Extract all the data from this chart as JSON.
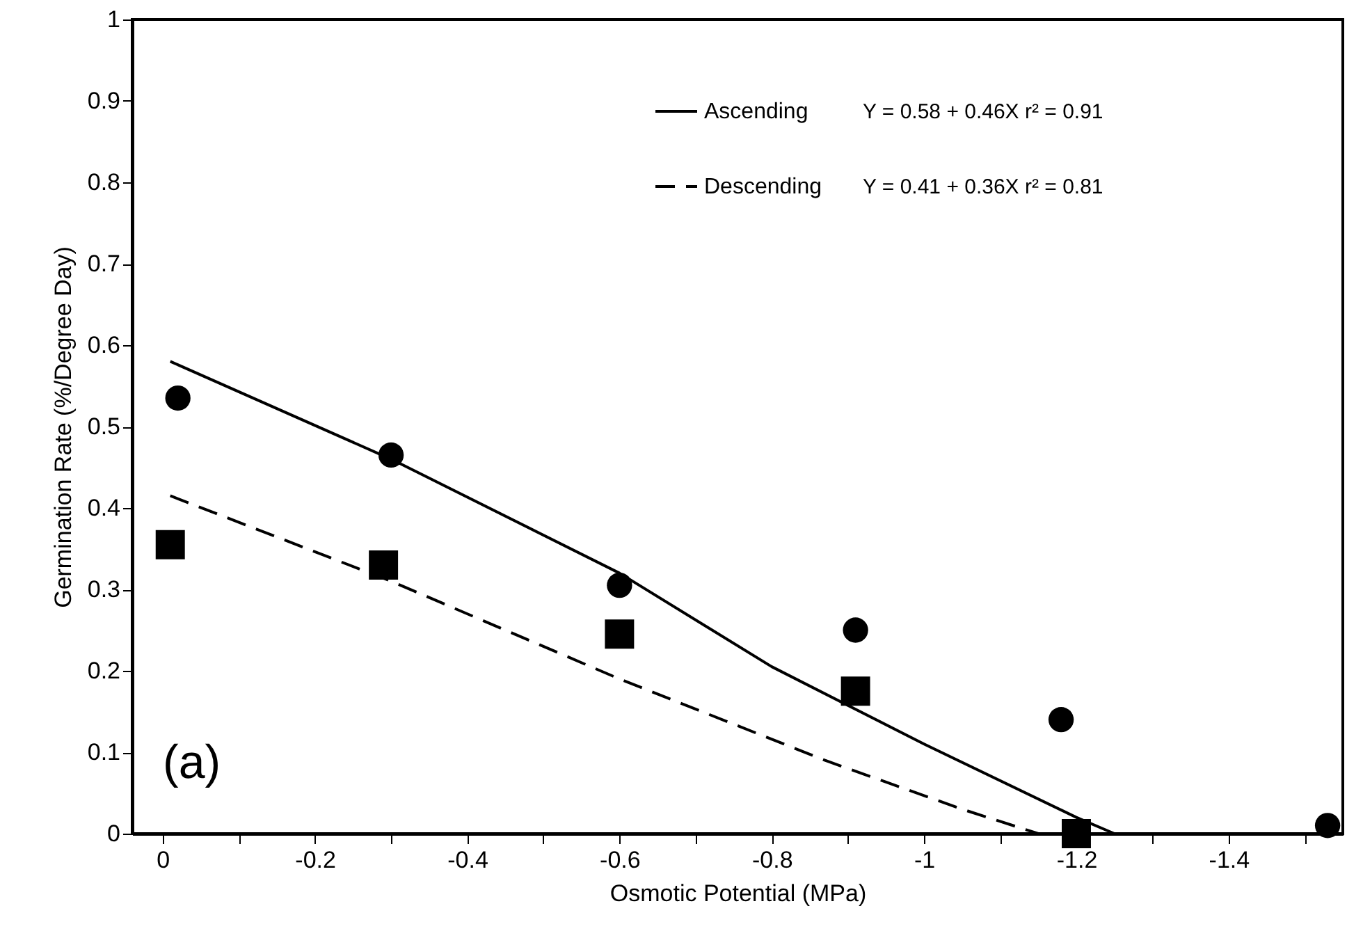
{
  "chart_data": {
    "type": "scatter",
    "xlabel": "Osmotic Potential (MPa)",
    "ylabel": "Germination Rate (%/Degree Day)",
    "xlim": [
      0.04,
      -1.55
    ],
    "ylim": [
      0,
      1
    ],
    "xticks": [
      0,
      {
        "value": -0.1,
        "label": null
      },
      -0.2,
      {
        "value": -0.3,
        "label": null
      },
      -0.4,
      {
        "value": -0.5,
        "label": null
      },
      -0.6,
      {
        "value": -0.7,
        "label": null
      },
      -0.8,
      {
        "value": -0.9,
        "label": null
      },
      -1,
      {
        "value": -1.1,
        "label": null
      },
      -1.2,
      {
        "value": -1.3,
        "label": null
      },
      -1.4,
      {
        "value": -1.5,
        "label": null
      }
    ],
    "yticks": [
      0,
      0.1,
      0.2,
      0.3,
      0.4,
      0.5,
      0.6,
      0.7,
      0.8,
      0.9,
      1
    ],
    "grid": false,
    "legend": "top right",
    "series": [
      {
        "type": "scatter",
        "marker": "circle",
        "color": "#000000",
        "x": [
          -0.02,
          -0.3,
          -0.6,
          -0.91,
          -1.18,
          -1.53
        ],
        "values": [
          0.535,
          0.465,
          0.305,
          0.25,
          0.14,
          0.01
        ]
      },
      {
        "type": "scatter",
        "marker": "square",
        "color": "#000000",
        "x": [
          -0.01,
          -0.29,
          -0.6,
          -0.91,
          -1.2
        ],
        "values": [
          0.355,
          0.33,
          0.245,
          0.175,
          0.0
        ]
      },
      {
        "type": "line",
        "name": "Ascending",
        "line_style": "solid",
        "marker": "none",
        "color": "#000000",
        "x": [
          -0.01,
          -0.3,
          -0.6,
          -0.8,
          -1.0,
          -1.2,
          -1.25
        ],
        "values": [
          0.58,
          0.46,
          0.32,
          0.205,
          0.11,
          0.02,
          0
        ]
      },
      {
        "type": "line",
        "name": "Descending",
        "line_style": "dashed",
        "marker": "none",
        "color": "#000000",
        "x": [
          -0.01,
          -0.3,
          -0.6,
          -0.87,
          -1.05,
          -1.15
        ],
        "values": [
          0.415,
          0.31,
          0.19,
          0.09,
          0.03,
          0
        ]
      }
    ],
    "annotations": [
      "(a)",
      "Y = 0.58 + 0.46X  r² = 0.91",
      "Y = 0.41 + 0.36X  r² = 0.81"
    ]
  }
}
